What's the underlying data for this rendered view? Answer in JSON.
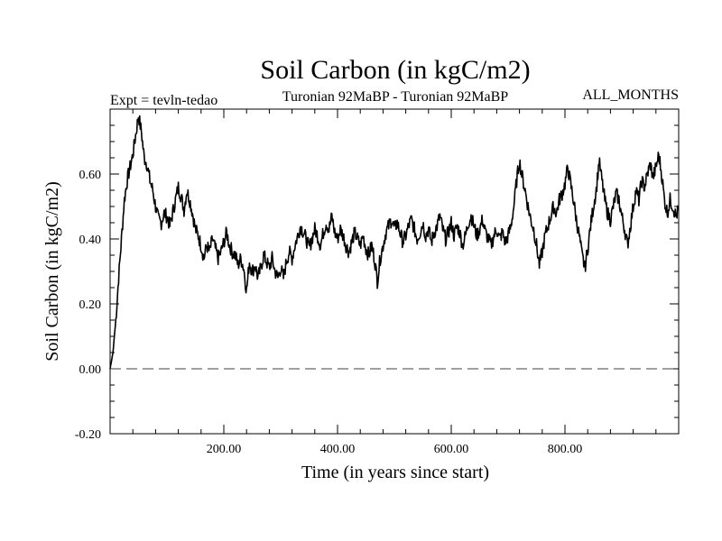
{
  "chart_data": {
    "type": "line",
    "title": "Soil Carbon (in kgC/m2)",
    "subtitle_left": "Expt = tevln-tedao",
    "subtitle_center": "Turonian  92MaBP - Turonian  92MaBP",
    "subtitle_right": "ALL_MONTHS",
    "xlabel": "Time (in years since start)",
    "ylabel": "Soil Carbon (in kgC/m2)",
    "xlim": [
      0,
      1000
    ],
    "ylim": [
      -0.2,
      0.8
    ],
    "xticks": [
      {
        "value": 200,
        "label": "200.00"
      },
      {
        "value": 400,
        "label": "400.00"
      },
      {
        "value": 600,
        "label": "600.00"
      },
      {
        "value": 800,
        "label": "800.00"
      }
    ],
    "yticks": [
      {
        "value": -0.2,
        "label": "-0.20"
      },
      {
        "value": 0.0,
        "label": "0.00"
      },
      {
        "value": 0.2,
        "label": "0.20"
      },
      {
        "value": 0.4,
        "label": "0.40"
      },
      {
        "value": 0.6,
        "label": "0.60"
      }
    ],
    "reference_line": {
      "y": 0.0,
      "style": "dashed",
      "color": "#808080"
    },
    "series": [
      {
        "name": "Soil Carbon",
        "color": "#000000",
        "points": [
          [
            0,
            0.0
          ],
          [
            5,
            0.05
          ],
          [
            10,
            0.15
          ],
          [
            15,
            0.28
          ],
          [
            20,
            0.4
          ],
          [
            25,
            0.52
          ],
          [
            30,
            0.58
          ],
          [
            35,
            0.62
          ],
          [
            40,
            0.66
          ],
          [
            45,
            0.72
          ],
          [
            50,
            0.78
          ],
          [
            55,
            0.73
          ],
          [
            60,
            0.65
          ],
          [
            65,
            0.63
          ],
          [
            70,
            0.58
          ],
          [
            75,
            0.55
          ],
          [
            80,
            0.5
          ],
          [
            85,
            0.46
          ],
          [
            90,
            0.45
          ],
          [
            95,
            0.48
          ],
          [
            100,
            0.47
          ],
          [
            105,
            0.44
          ],
          [
            110,
            0.48
          ],
          [
            115,
            0.52
          ],
          [
            120,
            0.56
          ],
          [
            125,
            0.53
          ],
          [
            130,
            0.49
          ],
          [
            135,
            0.55
          ],
          [
            140,
            0.52
          ],
          [
            145,
            0.48
          ],
          [
            150,
            0.43
          ],
          [
            155,
            0.41
          ],
          [
            160,
            0.38
          ],
          [
            165,
            0.34
          ],
          [
            170,
            0.38
          ],
          [
            175,
            0.36
          ],
          [
            180,
            0.4
          ],
          [
            185,
            0.37
          ],
          [
            190,
            0.34
          ],
          [
            195,
            0.36
          ],
          [
            200,
            0.39
          ],
          [
            205,
            0.42
          ],
          [
            210,
            0.38
          ],
          [
            215,
            0.36
          ],
          [
            220,
            0.35
          ],
          [
            225,
            0.32
          ],
          [
            230,
            0.34
          ],
          [
            235,
            0.31
          ],
          [
            240,
            0.24
          ],
          [
            245,
            0.33
          ],
          [
            250,
            0.3
          ],
          [
            255,
            0.32
          ],
          [
            260,
            0.28
          ],
          [
            265,
            0.31
          ],
          [
            270,
            0.35
          ],
          [
            275,
            0.33
          ],
          [
            280,
            0.31
          ],
          [
            285,
            0.34
          ],
          [
            290,
            0.3
          ],
          [
            295,
            0.28
          ],
          [
            300,
            0.31
          ],
          [
            305,
            0.28
          ],
          [
            310,
            0.33
          ],
          [
            315,
            0.36
          ],
          [
            320,
            0.34
          ],
          [
            325,
            0.38
          ],
          [
            330,
            0.41
          ],
          [
            335,
            0.44
          ],
          [
            340,
            0.42
          ],
          [
            345,
            0.4
          ],
          [
            350,
            0.37
          ],
          [
            355,
            0.4
          ],
          [
            360,
            0.43
          ],
          [
            365,
            0.41
          ],
          [
            370,
            0.38
          ],
          [
            375,
            0.42
          ],
          [
            380,
            0.45
          ],
          [
            385,
            0.43
          ],
          [
            390,
            0.47
          ],
          [
            395,
            0.42
          ],
          [
            400,
            0.4
          ],
          [
            405,
            0.43
          ],
          [
            410,
            0.41
          ],
          [
            415,
            0.38
          ],
          [
            420,
            0.36
          ],
          [
            425,
            0.39
          ],
          [
            430,
            0.42
          ],
          [
            435,
            0.4
          ],
          [
            440,
            0.38
          ],
          [
            445,
            0.41
          ],
          [
            450,
            0.37
          ],
          [
            455,
            0.35
          ],
          [
            460,
            0.38
          ],
          [
            465,
            0.34
          ],
          [
            470,
            0.27
          ],
          [
            475,
            0.34
          ],
          [
            480,
            0.38
          ],
          [
            485,
            0.42
          ],
          [
            490,
            0.44
          ],
          [
            495,
            0.46
          ],
          [
            500,
            0.43
          ],
          [
            505,
            0.45
          ],
          [
            510,
            0.42
          ],
          [
            515,
            0.39
          ],
          [
            520,
            0.41
          ],
          [
            525,
            0.44
          ],
          [
            530,
            0.46
          ],
          [
            535,
            0.43
          ],
          [
            540,
            0.4
          ],
          [
            545,
            0.42
          ],
          [
            550,
            0.45
          ],
          [
            555,
            0.41
          ],
          [
            560,
            0.43
          ],
          [
            565,
            0.39
          ],
          [
            570,
            0.42
          ],
          [
            575,
            0.44
          ],
          [
            580,
            0.47
          ],
          [
            585,
            0.43
          ],
          [
            590,
            0.4
          ],
          [
            595,
            0.42
          ],
          [
            600,
            0.45
          ],
          [
            605,
            0.41
          ],
          [
            610,
            0.44
          ],
          [
            615,
            0.42
          ],
          [
            620,
            0.38
          ],
          [
            625,
            0.41
          ],
          [
            630,
            0.45
          ],
          [
            635,
            0.47
          ],
          [
            640,
            0.44
          ],
          [
            645,
            0.41
          ],
          [
            650,
            0.43
          ],
          [
            655,
            0.46
          ],
          [
            660,
            0.42
          ],
          [
            665,
            0.4
          ],
          [
            670,
            0.38
          ],
          [
            675,
            0.41
          ],
          [
            680,
            0.43
          ],
          [
            685,
            0.4
          ],
          [
            690,
            0.42
          ],
          [
            695,
            0.39
          ],
          [
            700,
            0.41
          ],
          [
            705,
            0.44
          ],
          [
            710,
            0.5
          ],
          [
            715,
            0.58
          ],
          [
            720,
            0.64
          ],
          [
            725,
            0.59
          ],
          [
            730,
            0.55
          ],
          [
            735,
            0.5
          ],
          [
            740,
            0.46
          ],
          [
            745,
            0.43
          ],
          [
            750,
            0.38
          ],
          [
            755,
            0.32
          ],
          [
            760,
            0.36
          ],
          [
            765,
            0.41
          ],
          [
            770,
            0.44
          ],
          [
            775,
            0.47
          ],
          [
            780,
            0.5
          ],
          [
            785,
            0.48
          ],
          [
            790,
            0.52
          ],
          [
            795,
            0.54
          ],
          [
            800,
            0.57
          ],
          [
            805,
            0.62
          ],
          [
            810,
            0.57
          ],
          [
            815,
            0.52
          ],
          [
            820,
            0.46
          ],
          [
            825,
            0.41
          ],
          [
            830,
            0.35
          ],
          [
            835,
            0.31
          ],
          [
            840,
            0.37
          ],
          [
            845,
            0.44
          ],
          [
            850,
            0.5
          ],
          [
            855,
            0.55
          ],
          [
            860,
            0.64
          ],
          [
            865,
            0.58
          ],
          [
            870,
            0.52
          ],
          [
            875,
            0.48
          ],
          [
            880,
            0.46
          ],
          [
            885,
            0.5
          ],
          [
            890,
            0.54
          ],
          [
            895,
            0.52
          ],
          [
            900,
            0.47
          ],
          [
            905,
            0.43
          ],
          [
            910,
            0.38
          ],
          [
            915,
            0.44
          ],
          [
            920,
            0.5
          ],
          [
            925,
            0.55
          ],
          [
            930,
            0.52
          ],
          [
            935,
            0.58
          ],
          [
            940,
            0.56
          ],
          [
            945,
            0.6
          ],
          [
            950,
            0.63
          ],
          [
            955,
            0.59
          ],
          [
            960,
            0.62
          ],
          [
            965,
            0.66
          ],
          [
            970,
            0.6
          ],
          [
            975,
            0.52
          ],
          [
            980,
            0.48
          ],
          [
            985,
            0.52
          ],
          [
            990,
            0.5
          ],
          [
            995,
            0.47
          ],
          [
            1000,
            0.49
          ]
        ]
      }
    ]
  }
}
